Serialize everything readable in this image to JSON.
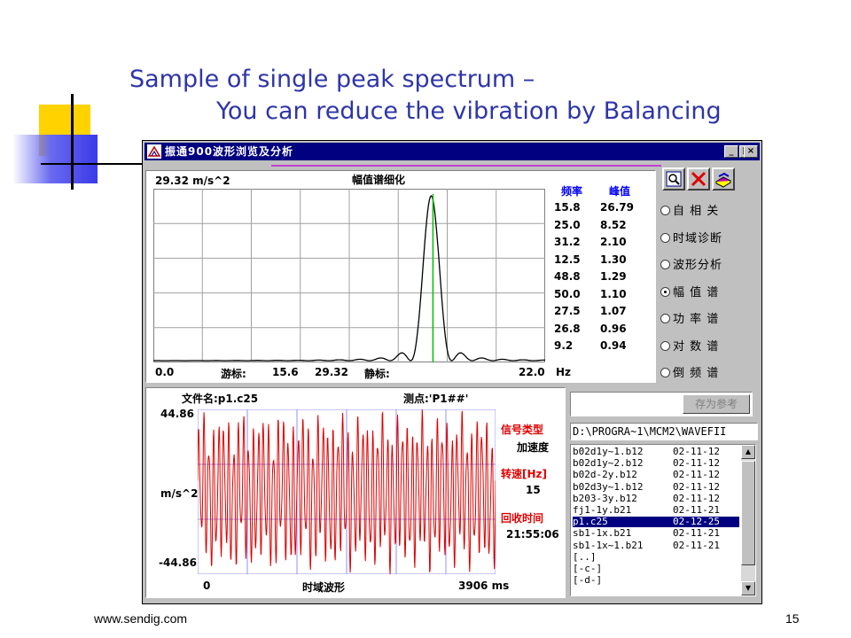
{
  "slide": {
    "title_line1": "Sample of single peak spectrum –",
    "title_line2": "You can reduce the vibration by Balancing",
    "footer_url": "www.sendig.com",
    "page_number": "15"
  },
  "window": {
    "title": "振通900波形浏览及分析",
    "minimize": "_",
    "maximize": "□",
    "close": "×"
  },
  "spectrum": {
    "amplitude_label": "29.32  m/s^2",
    "title": "幅值谱细化",
    "x_start": "0.0",
    "cursor_label": "游标:",
    "cursor_freq": "15.6",
    "cursor_amp": "29.32",
    "static_label": "静标:",
    "x_end": "22.0",
    "x_unit": "Hz",
    "chart_data": {
      "type": "line",
      "xlim": [
        0,
        22.0
      ],
      "ylim": [
        0,
        29.32
      ],
      "peak_frequency": 15.6,
      "peak_amplitude": 29.32,
      "series_color": "#000000",
      "cursor_color": "#00c000"
    }
  },
  "peaks": {
    "freq_header": "频率",
    "value_header": "峰值",
    "rows": [
      {
        "freq": "15.8",
        "value": "26.79"
      },
      {
        "freq": "25.0",
        "value": "8.52"
      },
      {
        "freq": "31.2",
        "value": "2.10"
      },
      {
        "freq": "12.5",
        "value": "1.30"
      },
      {
        "freq": "48.8",
        "value": "1.29"
      },
      {
        "freq": "50.0",
        "value": "1.10"
      },
      {
        "freq": "27.5",
        "value": "1.07"
      },
      {
        "freq": "26.8",
        "value": "0.96"
      },
      {
        "freq": "9.2",
        "value": "0.94"
      }
    ]
  },
  "toolbar_icons": [
    "search-icon",
    "close-icon",
    "book-icon"
  ],
  "modes": [
    {
      "label": "自 相 关",
      "checked": false
    },
    {
      "label": "时域诊断",
      "checked": false
    },
    {
      "label": "波形分析",
      "checked": false
    },
    {
      "label": "幅 值 谱",
      "checked": true
    },
    {
      "label": "功 率 谱",
      "checked": false
    },
    {
      "label": "对 数 谱",
      "checked": false
    },
    {
      "label": "倒 频 谱",
      "checked": false
    }
  ],
  "waveform": {
    "filename": "文件名:p1.c25",
    "measure_point": "测点:'P1##'",
    "y_max": "44.86",
    "y_unit": "m/s^2",
    "y_min": "-44.86",
    "x_start": "0",
    "title": "时域波形",
    "x_end": "3906 ms",
    "chart_data": {
      "type": "line",
      "xlim": [
        0,
        3906
      ],
      "ylim": [
        -44.86,
        44.86
      ],
      "series_color": "#e00000"
    }
  },
  "signal_info": {
    "signal_type_label": "信号类型",
    "signal_type": "加速度",
    "speed_label": "转速[Hz]",
    "speed": "15",
    "time_label": "回收时间",
    "time": "21:55:06"
  },
  "save_ref_label": "存为参考",
  "path": "D:\\PROGRA~1\\MCM2\\WAVEFII",
  "files": [
    {
      "name": "b02d1y~1.b12",
      "date": "02-11-12",
      "selected": false
    },
    {
      "name": "b02d1y~2.b12",
      "date": "02-11-12",
      "selected": false
    },
    {
      "name": "b02d-2y.b12",
      "date": "02-11-12",
      "selected": false
    },
    {
      "name": "b02d3y~1.b12",
      "date": "02-11-12",
      "selected": false
    },
    {
      "name": "b203-3y.b12",
      "date": "02-11-12",
      "selected": false
    },
    {
      "name": "fj1-1y.b21",
      "date": "02-11-21",
      "selected": false
    },
    {
      "name": "p1.c25",
      "date": "02-12-25",
      "selected": true
    },
    {
      "name": "sb1-1x.b21",
      "date": "02-11-21",
      "selected": false
    },
    {
      "name": "sb1-1x~1.b21",
      "date": "02-11-21",
      "selected": false
    },
    {
      "name": "[..]",
      "date": "",
      "selected": false
    },
    {
      "name": "[-c-]",
      "date": "",
      "selected": false
    },
    {
      "name": "[-d-]",
      "date": "",
      "selected": false
    }
  ]
}
